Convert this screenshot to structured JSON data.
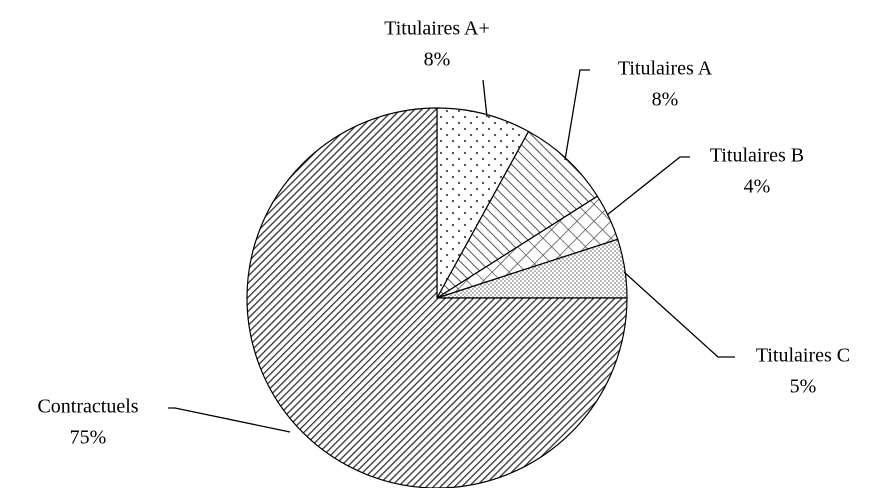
{
  "chart_data": {
    "type": "pie",
    "categories": [
      "Titulaires A+",
      "Titulaires A",
      "Titulaires B",
      "Titulaires C",
      "Contractuels"
    ],
    "values": [
      8,
      8,
      4,
      5,
      75
    ],
    "value_labels": [
      "8%",
      "8%",
      "4%",
      "5%",
      "75%"
    ]
  }
}
